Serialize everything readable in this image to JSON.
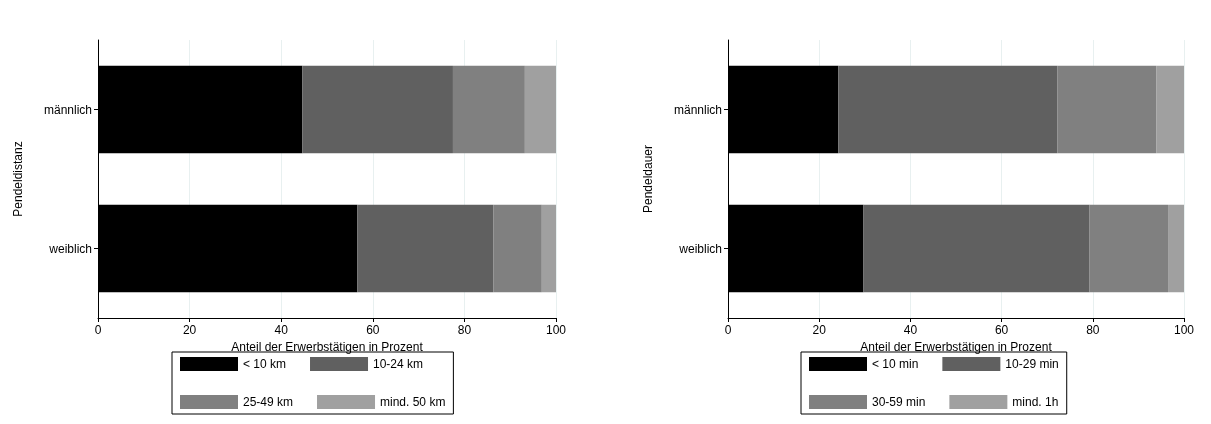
{
  "chart_data": [
    {
      "type": "bar",
      "orientation": "horizontal",
      "stacked": true,
      "ylabel": "Pendeldistanz",
      "xlabel": "Anteil der Erwerbstätigen in Prozent",
      "categories": [
        "männlich",
        "weiblich"
      ],
      "xlim": [
        0,
        100
      ],
      "xticks": [
        0,
        20,
        40,
        60,
        80,
        100
      ],
      "grid": "x",
      "legend": "bottom",
      "series": [
        {
          "name": "< 10 km",
          "color": "#000000",
          "values": [
            44.6,
            56.6
          ]
        },
        {
          "name": "10-24 km",
          "color": "#606060",
          "values": [
            32.9,
            29.7
          ]
        },
        {
          "name": "25-49 km",
          "color": "#808080",
          "values": [
            15.7,
            10.6
          ]
        },
        {
          "name": "mind. 50 km",
          "color": "#a0a0a0",
          "values": [
            6.8,
            3.1
          ]
        }
      ]
    },
    {
      "type": "bar",
      "orientation": "horizontal",
      "stacked": true,
      "ylabel": "Pendeldauer",
      "xlabel": "Anteil der Erwerbstätigen in Prozent",
      "categories": [
        "männlich",
        "weiblich"
      ],
      "xlim": [
        0,
        100
      ],
      "xticks": [
        0,
        20,
        40,
        60,
        80,
        100
      ],
      "grid": "x",
      "legend": "bottom",
      "series": [
        {
          "name": "< 10 min",
          "color": "#000000",
          "values": [
            24.2,
            29.7
          ]
        },
        {
          "name": "10-29 min",
          "color": "#606060",
          "values": [
            48.0,
            49.6
          ]
        },
        {
          "name": "30-59 min",
          "color": "#808080",
          "values": [
            21.7,
            17.2
          ]
        },
        {
          "name": "mind. 1h",
          "color": "#a0a0a0",
          "values": [
            6.1,
            3.5
          ]
        }
      ]
    }
  ]
}
